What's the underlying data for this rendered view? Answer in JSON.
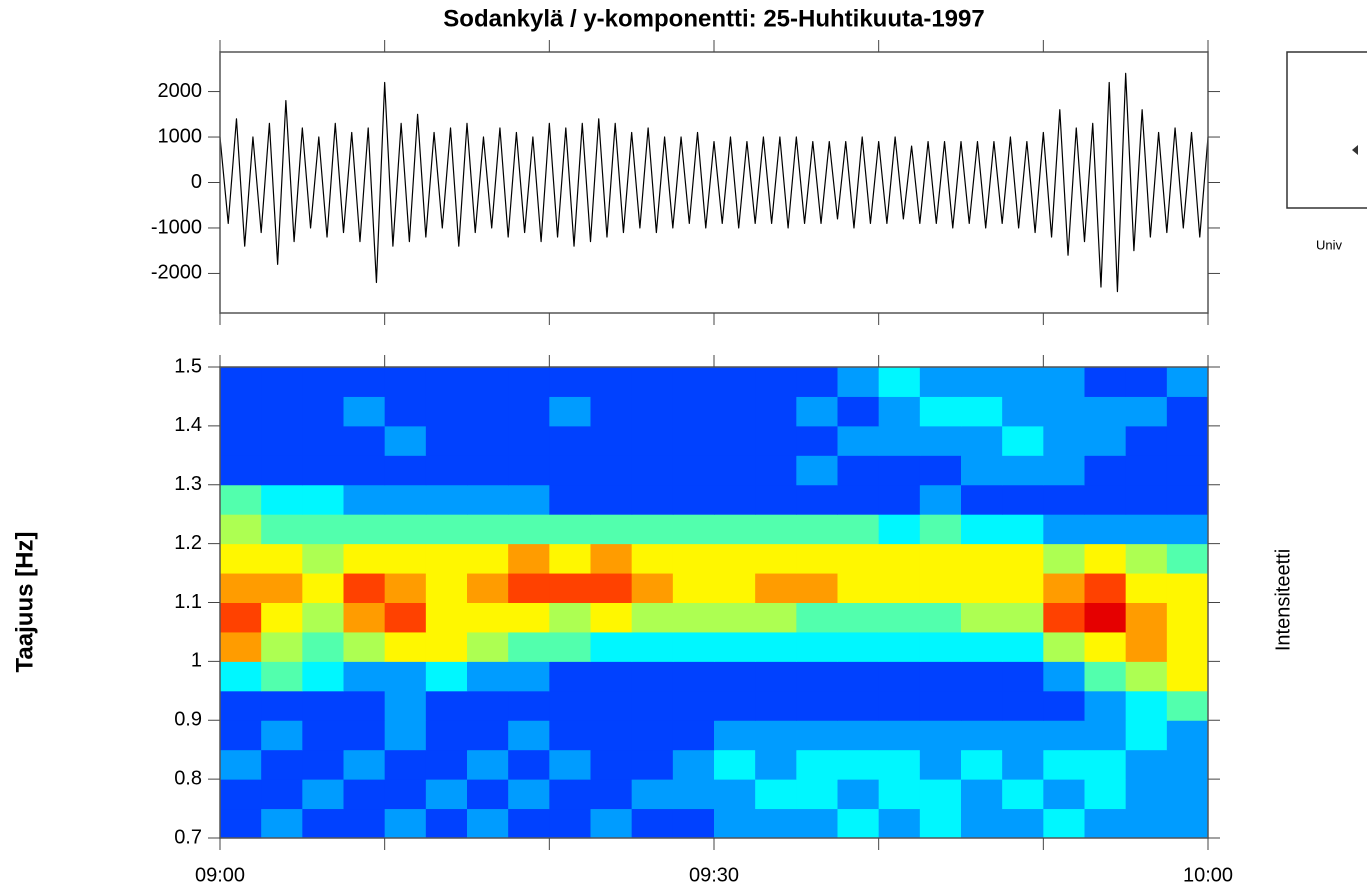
{
  "chart_data": [
    {
      "type": "line",
      "title": "Sodankylä / y-komponentti: 25-Huhtikuuta-1997",
      "color": "#000000",
      "xlim": [
        0,
        60
      ],
      "xticks": [
        {
          "value": 0,
          "label": "09:00"
        },
        {
          "value": 30,
          "label": "09:30"
        },
        {
          "value": 60,
          "label": "10:00"
        }
      ],
      "xminor_ticks": [
        10,
        20,
        40,
        50
      ],
      "ylim": [
        -2870,
        2870
      ],
      "yticks": [
        2000,
        1000,
        0,
        -1000,
        -2000
      ],
      "x": [
        0,
        0.5,
        1,
        1.5,
        2,
        2.5,
        3,
        3.5,
        4,
        4.5,
        5,
        5.5,
        6,
        6.5,
        7,
        7.5,
        8,
        8.5,
        9,
        9.5,
        10,
        10.5,
        11,
        11.5,
        12,
        12.5,
        13,
        13.5,
        14,
        14.5,
        15,
        15.5,
        16,
        16.5,
        17,
        17.5,
        18,
        18.5,
        19,
        19.5,
        20,
        20.5,
        21,
        21.5,
        22,
        22.5,
        23,
        23.5,
        24,
        24.5,
        25,
        25.5,
        26,
        26.5,
        27,
        27.5,
        28,
        28.5,
        29,
        29.5,
        30,
        30.5,
        31,
        31.5,
        32,
        32.5,
        33,
        33.5,
        34,
        34.5,
        35,
        35.5,
        36,
        36.5,
        37,
        37.5,
        38,
        38.5,
        39,
        39.5,
        40,
        40.5,
        41,
        41.5,
        42,
        42.5,
        43,
        43.5,
        44,
        44.5,
        45,
        45.5,
        46,
        46.5,
        47,
        47.5,
        48,
        48.5,
        49,
        49.5,
        50,
        50.5,
        51,
        51.5,
        52,
        52.5,
        53,
        53.5,
        54,
        54.5,
        55,
        55.5,
        56,
        56.5,
        57,
        57.5,
        58,
        58.5,
        59,
        59.5,
        60
      ],
      "values": [
        1000,
        -900,
        1400,
        -1400,
        1000,
        -1100,
        1300,
        -1800,
        1800,
        -1300,
        1200,
        -1000,
        1000,
        -1200,
        1300,
        -1100,
        1100,
        -1300,
        1200,
        -2200,
        2200,
        -1400,
        1300,
        -1300,
        1500,
        -1200,
        1100,
        -1000,
        1200,
        -1400,
        1300,
        -1100,
        1000,
        -1000,
        1200,
        -1200,
        1100,
        -1100,
        1000,
        -1300,
        1300,
        -1200,
        1200,
        -1400,
        1300,
        -1300,
        1400,
        -1200,
        1300,
        -1100,
        1100,
        -1000,
        1200,
        -1100,
        1000,
        -1000,
        1000,
        -900,
        1100,
        -1000,
        900,
        -900,
        1000,
        -1000,
        900,
        -900,
        1000,
        -900,
        1000,
        -1000,
        1000,
        -900,
        900,
        -900,
        900,
        -800,
        900,
        -1000,
        1000,
        -900,
        900,
        -900,
        1000,
        -800,
        800,
        -900,
        900,
        -900,
        900,
        -1000,
        900,
        -900,
        900,
        -1000,
        900,
        -900,
        1000,
        -1000,
        900,
        -1100,
        1100,
        -1200,
        1600,
        -1600,
        1200,
        -1300,
        1300,
        -2300,
        2200,
        -2400,
        2400,
        -1500,
        1600,
        -1200,
        1100,
        -1100,
        1200,
        -1000,
        1100,
        -1200,
        1000
      ]
    },
    {
      "type": "heatmap",
      "ylabel": "Taajuus [Hz]",
      "colorbar_label": "Intensiteetti",
      "colormap": "jet",
      "zlim": [
        0,
        9
      ],
      "xlim": [
        0,
        60
      ],
      "xticks": [
        {
          "value": 0,
          "label": "09:00"
        },
        {
          "value": 30,
          "label": "09:30"
        },
        {
          "value": 60,
          "label": "10:00"
        }
      ],
      "xminor_ticks": [
        10,
        20,
        40,
        50
      ],
      "ylim": [
        0.7,
        1.5
      ],
      "yticks": [
        0.7,
        0.8,
        0.9,
        1,
        1.1,
        1.2,
        1.3,
        1.4,
        1.5
      ],
      "xbins": [
        0,
        2.5,
        5,
        7.5,
        10,
        12.5,
        15,
        17.5,
        20,
        22.5,
        25,
        27.5,
        30,
        32.5,
        35,
        37.5,
        40,
        42.5,
        45,
        47.5,
        50,
        52.5,
        55,
        57.5,
        60
      ],
      "ybins": [
        0.7,
        0.75,
        0.8,
        0.85,
        0.9,
        0.95,
        1,
        1.05,
        1.1,
        1.15,
        1.2,
        1.25,
        1.3,
        1.35,
        1.4,
        1.45,
        1.5
      ],
      "z": [
        [
          1,
          2,
          1,
          1,
          2,
          1,
          2,
          1,
          1,
          2,
          1,
          1,
          2,
          2,
          2,
          3,
          2,
          3,
          2,
          2,
          3,
          2,
          2,
          2
        ],
        [
          1,
          1,
          2,
          1,
          1,
          2,
          1,
          2,
          1,
          1,
          2,
          2,
          2,
          3,
          3,
          2,
          3,
          3,
          2,
          3,
          2,
          3,
          2,
          2
        ],
        [
          2,
          1,
          1,
          2,
          1,
          1,
          2,
          1,
          2,
          1,
          1,
          2,
          3,
          2,
          3,
          3,
          3,
          2,
          3,
          2,
          3,
          3,
          2,
          2
        ],
        [
          1,
          2,
          1,
          1,
          2,
          1,
          1,
          2,
          1,
          1,
          1,
          1,
          2,
          2,
          2,
          2,
          2,
          2,
          2,
          2,
          2,
          2,
          3,
          2
        ],
        [
          1,
          1,
          1,
          1,
          2,
          1,
          1,
          1,
          1,
          1,
          1,
          1,
          1,
          1,
          1,
          1,
          1,
          1,
          1,
          1,
          1,
          2,
          3,
          4
        ],
        [
          3,
          4,
          3,
          2,
          2,
          3,
          2,
          2,
          1,
          1,
          1,
          1,
          1,
          1,
          1,
          1,
          1,
          1,
          1,
          1,
          2,
          4,
          5,
          6
        ],
        [
          7,
          5,
          4,
          5,
          6,
          6,
          5,
          4,
          4,
          3,
          3,
          3,
          3,
          3,
          3,
          3,
          3,
          3,
          3,
          3,
          5,
          6,
          7,
          6
        ],
        [
          8,
          6,
          5,
          7,
          8,
          6,
          6,
          6,
          5,
          6,
          5,
          5,
          5,
          5,
          4,
          4,
          4,
          4,
          5,
          5,
          8,
          9,
          7,
          6
        ],
        [
          7,
          7,
          6,
          8,
          7,
          6,
          7,
          8,
          8,
          8,
          7,
          6,
          6,
          7,
          7,
          6,
          6,
          6,
          6,
          6,
          7,
          8,
          6,
          6
        ],
        [
          6,
          6,
          5,
          6,
          6,
          6,
          6,
          7,
          6,
          7,
          6,
          6,
          6,
          6,
          6,
          6,
          6,
          6,
          6,
          6,
          5,
          6,
          5,
          4
        ],
        [
          5,
          4,
          4,
          4,
          4,
          4,
          4,
          4,
          4,
          4,
          4,
          4,
          4,
          4,
          4,
          4,
          3,
          4,
          3,
          3,
          2,
          2,
          2,
          2
        ],
        [
          4,
          3,
          3,
          2,
          2,
          2,
          2,
          2,
          1,
          1,
          1,
          1,
          1,
          1,
          1,
          1,
          1,
          2,
          1,
          1,
          1,
          1,
          1,
          1
        ],
        [
          1,
          1,
          1,
          1,
          1,
          1,
          1,
          1,
          1,
          1,
          1,
          1,
          1,
          1,
          2,
          1,
          1,
          1,
          2,
          2,
          2,
          1,
          1,
          1
        ],
        [
          1,
          1,
          1,
          1,
          2,
          1,
          1,
          1,
          1,
          1,
          1,
          1,
          1,
          1,
          1,
          2,
          2,
          2,
          2,
          3,
          2,
          2,
          1,
          1
        ],
        [
          1,
          1,
          1,
          2,
          1,
          1,
          1,
          1,
          2,
          1,
          1,
          1,
          1,
          1,
          2,
          1,
          2,
          3,
          3,
          2,
          2,
          2,
          2,
          1
        ],
        [
          1,
          1,
          1,
          1,
          1,
          1,
          1,
          1,
          1,
          1,
          1,
          1,
          1,
          1,
          1,
          2,
          3,
          2,
          2,
          2,
          2,
          1,
          1,
          2
        ]
      ]
    }
  ],
  "credit": "Univ"
}
